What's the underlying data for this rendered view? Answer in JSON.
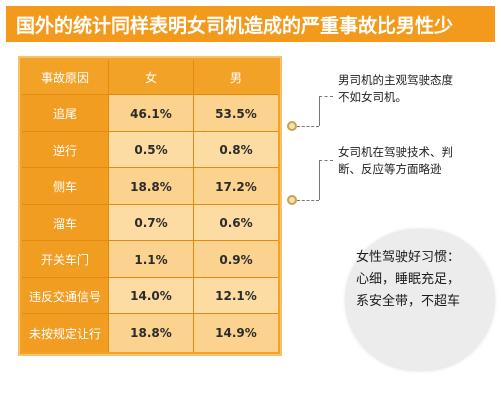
{
  "banner": {
    "title": "国外的统计同样表明女司机造成的严重事故比男性少"
  },
  "table": {
    "headers": [
      "事故原因",
      "女",
      "男"
    ],
    "rows": [
      [
        "追尾",
        "46.1%",
        "53.5%"
      ],
      [
        "逆行",
        "0.5%",
        "0.8%"
      ],
      [
        "侧车",
        "18.8%",
        "17.2%"
      ],
      [
        "溜车",
        "0.7%",
        "0.6%"
      ],
      [
        "开关车门",
        "1.1%",
        "0.9%"
      ],
      [
        "违反交通信号",
        "14.0%",
        "12.1%"
      ],
      [
        "未按规定让行",
        "18.8%",
        "14.9%"
      ]
    ]
  },
  "notes": {
    "note1": [
      "男司机的主观驾驶态度",
      "不如女司机。"
    ],
    "note2": [
      "女司机在驾驶技术、判",
      "断、反应等方面略逊"
    ]
  },
  "habits": {
    "lines": [
      "女性驾驶好习惯：",
      "心细，睡眠充足，",
      "系安全带，不超车"
    ]
  },
  "colors": {
    "banner": "#f39a1c",
    "table": "#f1a227",
    "cell": "#fbd28e"
  }
}
